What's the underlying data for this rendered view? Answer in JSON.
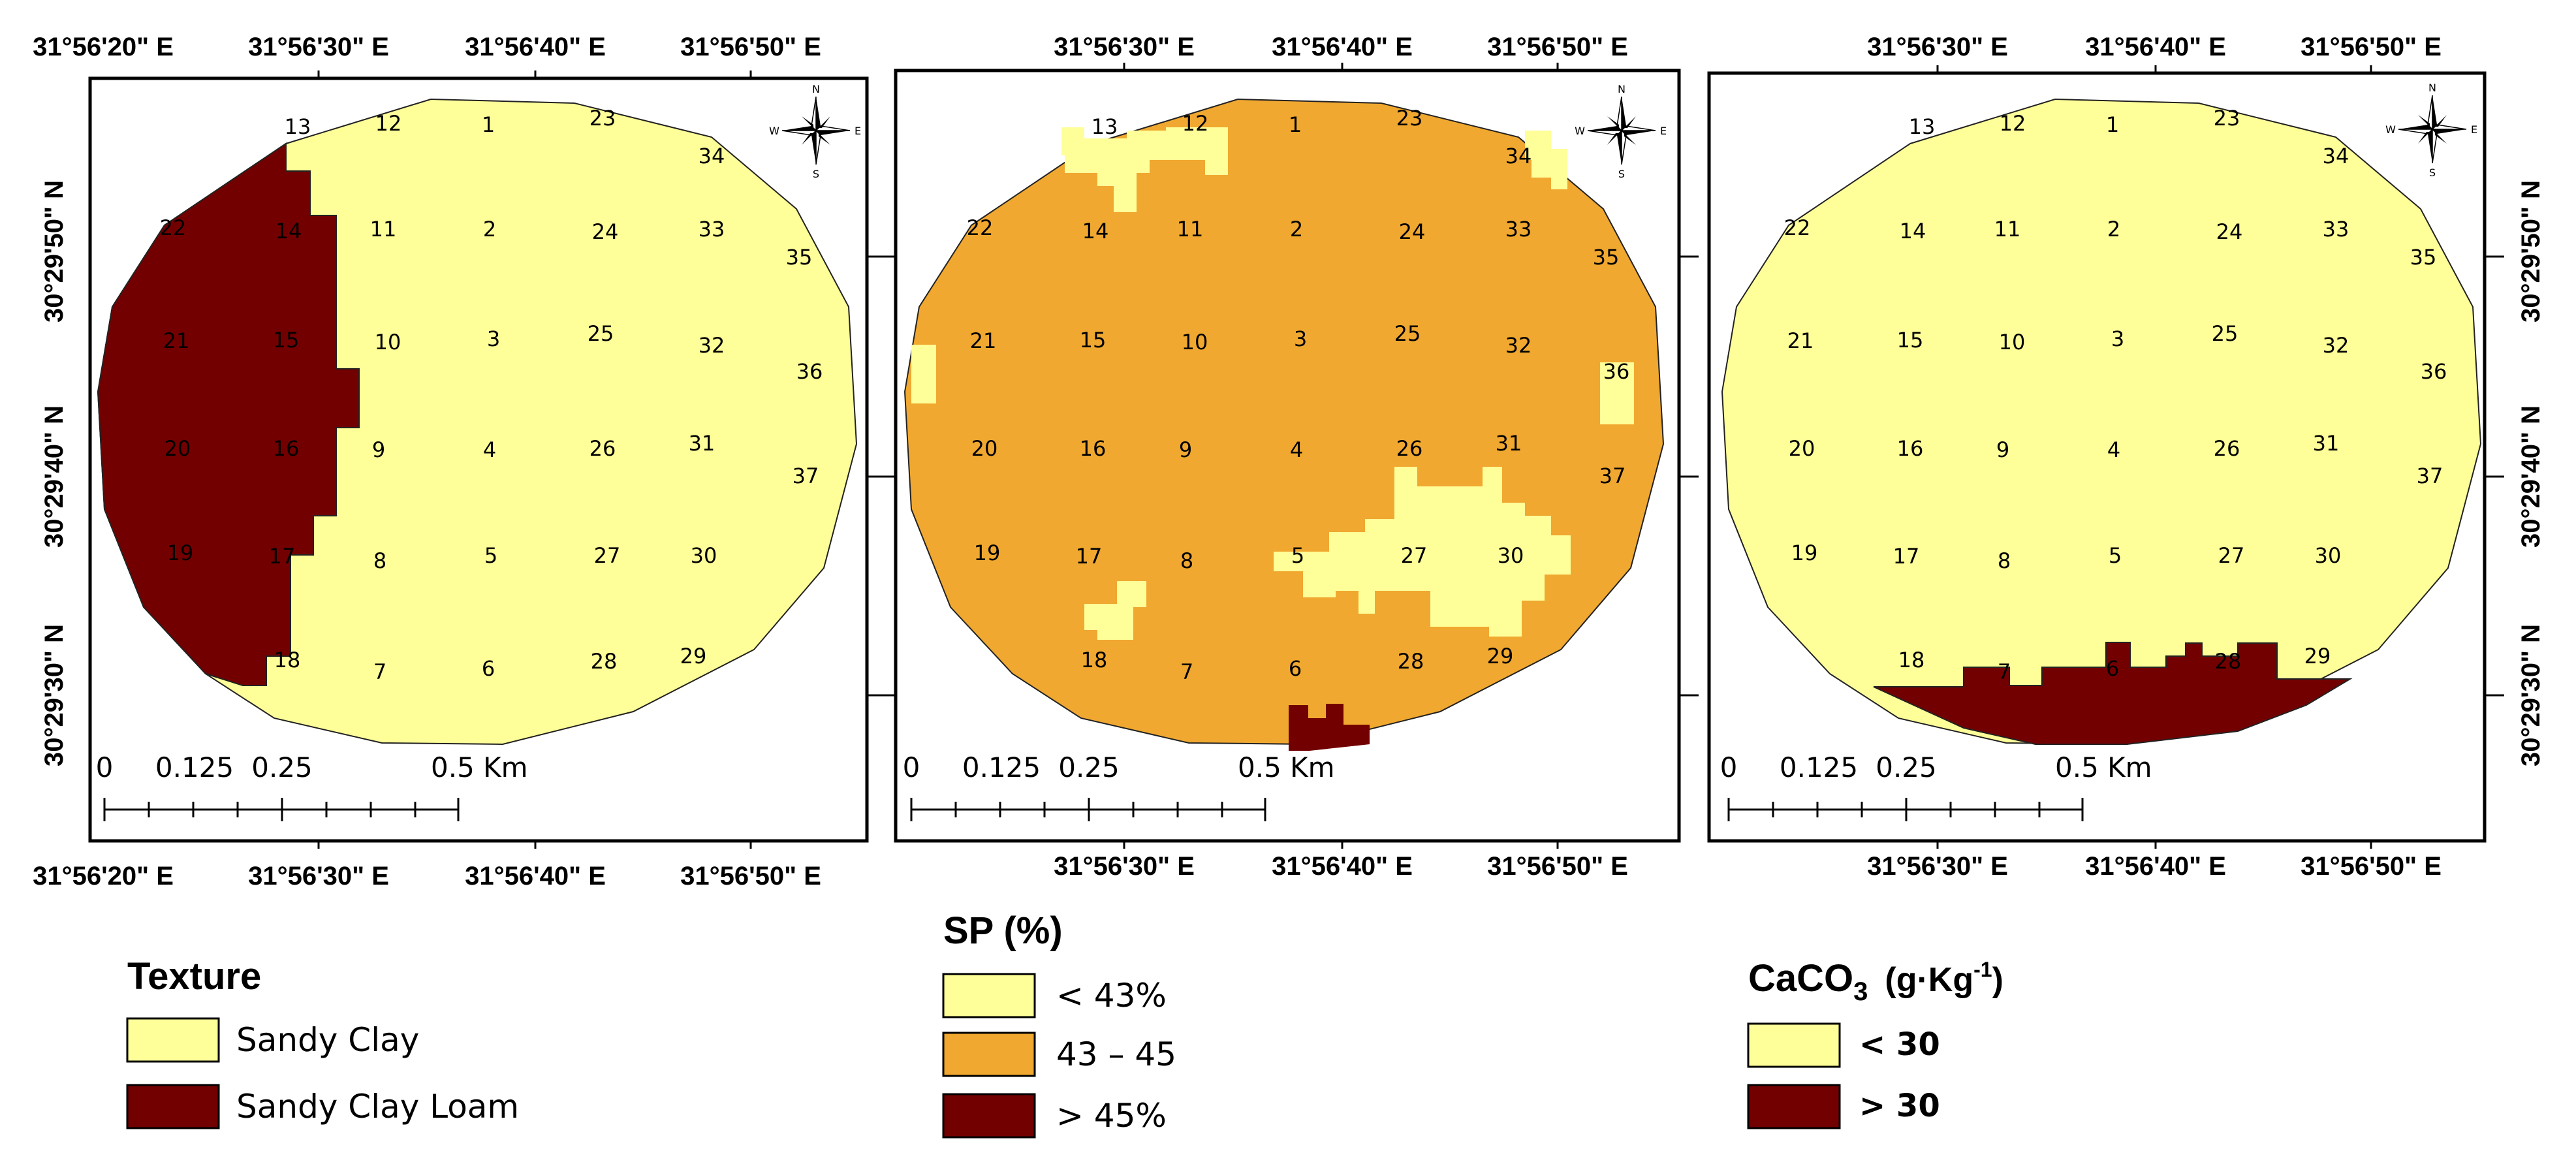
{
  "colors": {
    "light_yellow": "#ffff99",
    "orange": "#f0a830",
    "dark_red": "#730000",
    "frame": "#000000"
  },
  "icons": {
    "north_arrow": "compass-rose-icon"
  },
  "compass": {
    "n": "N",
    "e": "E",
    "s": "S",
    "w": "W"
  },
  "coords": {
    "x_left": "31°56'20\" E",
    "x_30": "31°56'30\" E",
    "x_40": "31°56'40\" E",
    "x_50": "31°56'50\" E",
    "y_50": "30°29'50\" N",
    "y_40": "30°29'40\" N",
    "y_30": "30°29'30\" N"
  },
  "scalebar": {
    "t0": "0",
    "t1": "0.125",
    "t2": "0.25",
    "t3": "0.5 Km"
  },
  "points": [
    "1",
    "2",
    "3",
    "4",
    "5",
    "6",
    "7",
    "8",
    "9",
    "10",
    "11",
    "12",
    "13",
    "14",
    "15",
    "16",
    "17",
    "18",
    "19",
    "20",
    "21",
    "22",
    "23",
    "24",
    "25",
    "26",
    "27",
    "28",
    "29",
    "30",
    "31",
    "32",
    "33",
    "34",
    "35",
    "36",
    "37"
  ],
  "legends": {
    "texture": {
      "title": "Texture",
      "items": [
        "Sandy Clay",
        "Sandy Clay Loam"
      ]
    },
    "sp": {
      "title": "SP (%)",
      "items": [
        "< 43%",
        "43 – 45",
        "> 45%"
      ]
    },
    "caco3": {
      "title_base": "CaCO",
      "title_sub": "3",
      "title_unit": "(g·Kg",
      "title_sup": "-1",
      "title_close": ")",
      "items": [
        "< 30",
        "> 30"
      ]
    }
  }
}
